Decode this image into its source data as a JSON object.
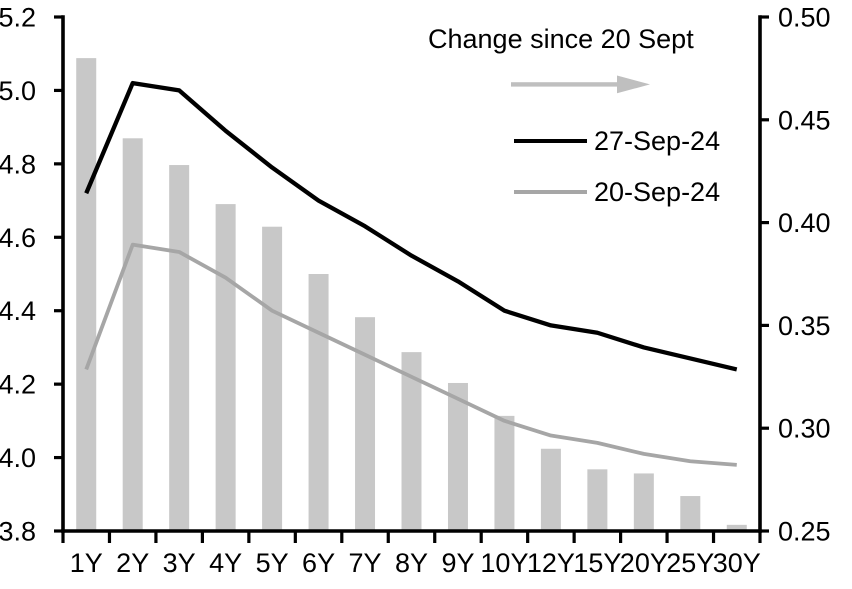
{
  "chart_data": {
    "type": "combo-bar-line",
    "title": "",
    "categories": [
      "1Y",
      "2Y",
      "3Y",
      "4Y",
      "5Y",
      "6Y",
      "7Y",
      "8Y",
      "9Y",
      "10Y",
      "12Y",
      "15Y",
      "20Y",
      "25Y",
      "30Y"
    ],
    "series": [
      {
        "name": "Change since 20 Sept",
        "type": "bar",
        "axis": "right",
        "color": "#c8c8c8",
        "values": [
          0.48,
          0.441,
          0.428,
          0.409,
          0.398,
          0.375,
          0.354,
          0.337,
          0.322,
          0.306,
          0.29,
          0.28,
          0.278,
          0.267,
          0.253
        ]
      },
      {
        "name": "27-Sep-24",
        "type": "line",
        "axis": "left",
        "color": "#000000",
        "stroke_width": 4.3,
        "values": [
          4.72,
          5.02,
          5.0,
          4.89,
          4.79,
          4.7,
          4.63,
          4.55,
          4.48,
          4.4,
          4.36,
          4.34,
          4.3,
          4.27,
          4.24
        ]
      },
      {
        "name": "20-Sep-24",
        "type": "line",
        "axis": "left",
        "color": "#a6a6a6",
        "stroke_width": 3.8,
        "values": [
          4.24,
          4.58,
          4.56,
          4.49,
          4.4,
          4.34,
          4.28,
          4.22,
          4.16,
          4.1,
          4.06,
          4.04,
          4.01,
          3.99,
          3.98
        ]
      }
    ],
    "left_axis": {
      "min": 3.8,
      "max": 5.2,
      "tick_values": [
        5.2,
        5.0,
        4.8,
        4.6,
        4.4,
        4.2,
        4.0,
        3.8
      ],
      "tick_labels": [
        "5.2",
        "5.0",
        "4.8",
        "4.6",
        "4.4",
        "4.2",
        "4.0",
        "3.8"
      ]
    },
    "right_axis": {
      "min": 0.25,
      "max": 0.5,
      "tick_values": [
        0.5,
        0.45,
        0.4,
        0.35,
        0.3,
        0.25
      ],
      "tick_labels": [
        "0.50",
        "0.45",
        "0.40",
        "0.35",
        "0.30",
        "0.25"
      ]
    },
    "grid": "off",
    "legend": {
      "position": "top-right-inside",
      "title": "Change since 20 Sept",
      "arrow_color": "#bfbfbf",
      "series1": "27-Sep-24",
      "series2": "20-Sep-24"
    }
  }
}
